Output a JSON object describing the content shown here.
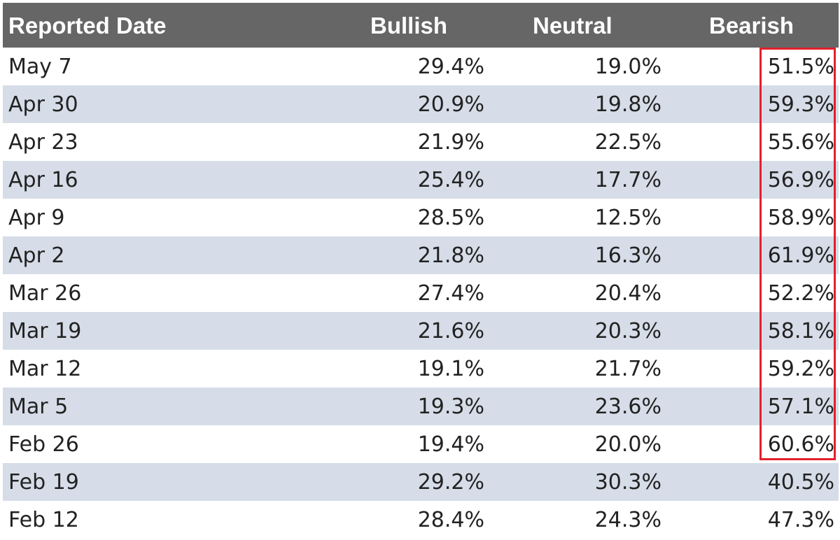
{
  "chart_data": {
    "type": "table",
    "columns": [
      "Reported Date",
      "Bullish",
      "Neutral",
      "Bearish"
    ],
    "rows": [
      [
        "May 7",
        "29.4%",
        "19.0%",
        "51.5%"
      ],
      [
        "Apr 30",
        "20.9%",
        "19.8%",
        "59.3%"
      ],
      [
        "Apr 23",
        "21.9%",
        "22.5%",
        "55.6%"
      ],
      [
        "Apr 16",
        "25.4%",
        "17.7%",
        "56.9%"
      ],
      [
        "Apr 9",
        "28.5%",
        "12.5%",
        "58.9%"
      ],
      [
        "Apr 2",
        "21.8%",
        "16.3%",
        "61.9%"
      ],
      [
        "Mar 26",
        "27.4%",
        "20.4%",
        "52.2%"
      ],
      [
        "Mar 19",
        "21.6%",
        "20.3%",
        "58.1%"
      ],
      [
        "Mar 12",
        "19.1%",
        "21.7%",
        "59.2%"
      ],
      [
        "Mar 5",
        "19.3%",
        "23.6%",
        "57.1%"
      ],
      [
        "Feb 26",
        "19.4%",
        "20.0%",
        "60.6%"
      ],
      [
        "Feb 19",
        "29.2%",
        "30.3%",
        "40.5%"
      ],
      [
        "Feb 12",
        "28.4%",
        "24.3%",
        "47.3%"
      ]
    ],
    "highlight": {
      "column": "Bearish",
      "from_row": "May 7",
      "to_row": "Feb 26",
      "color": "#e3202c"
    },
    "colors": {
      "header_bg": "#666666",
      "header_text": "#ffffff",
      "alt_row_bg": "#d6dde8"
    }
  }
}
